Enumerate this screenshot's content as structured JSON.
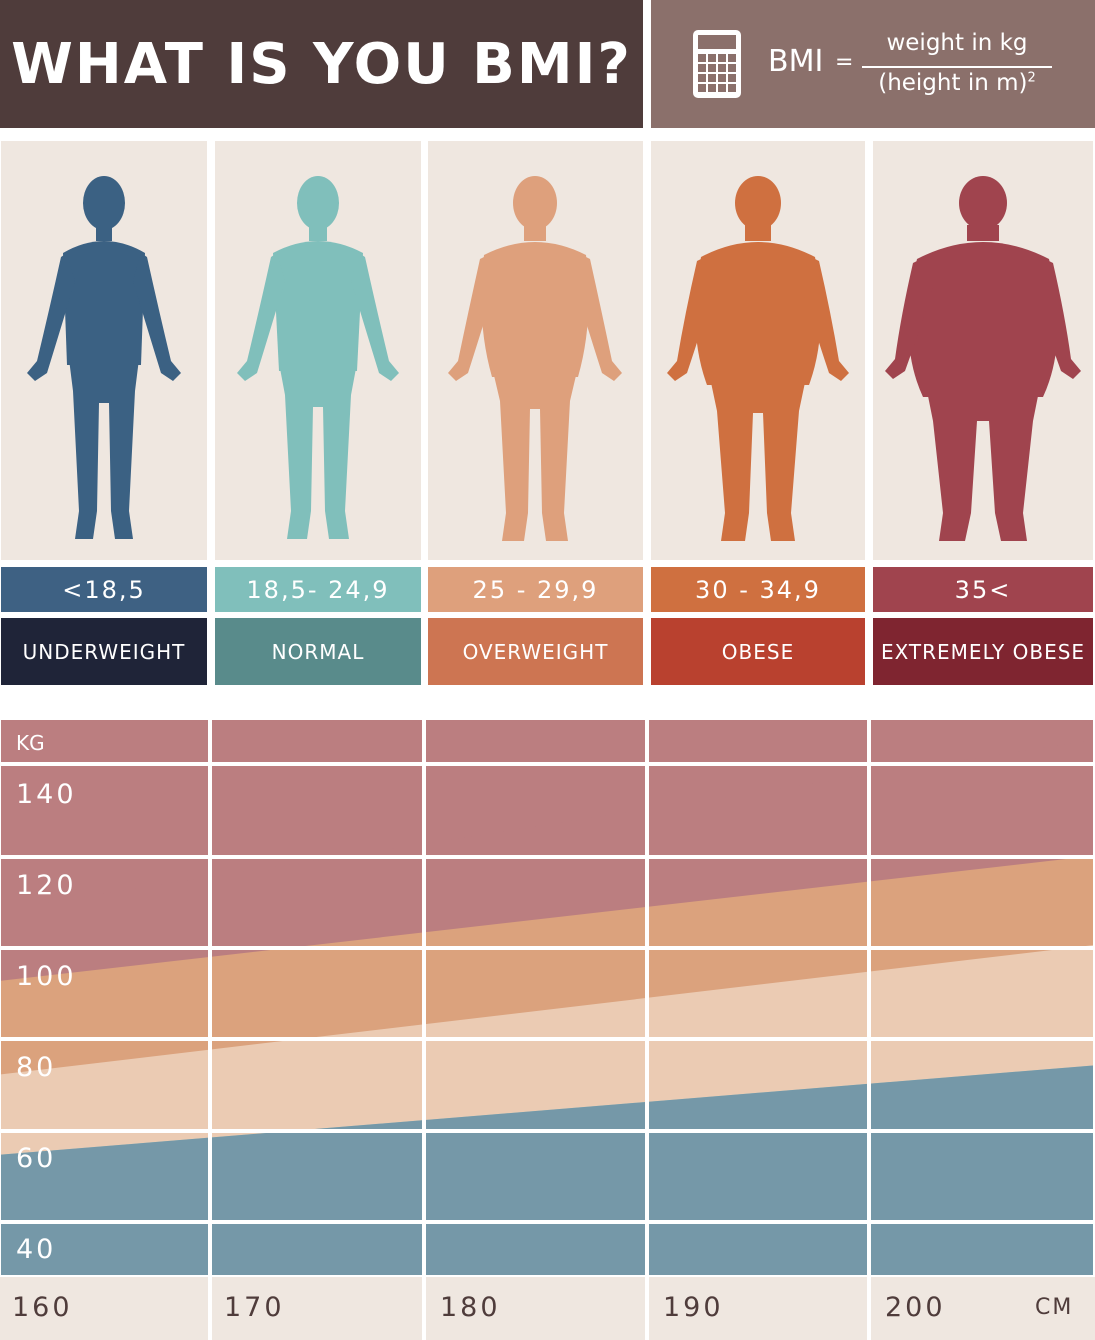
{
  "header": {
    "title": "WHAT IS YOU BMI?",
    "bmi_label": "BMI",
    "equals": "=",
    "numerator": "weight in kg",
    "denominator": "(height in m)",
    "denominator_exponent": "2",
    "icon": "calculator-icon"
  },
  "categories": [
    {
      "range": "<18,5",
      "label": "UNDERWEIGHT",
      "figure_color": "#3b6183",
      "range_color": "#3e6183",
      "label_color": "#1f2438"
    },
    {
      "range": "18,5- 24,9",
      "label": "NORMAL",
      "figure_color": "#80bfbb",
      "range_color": "#80bfbb",
      "label_color": "#598b8b"
    },
    {
      "range": "25 - 29,9",
      "label": "OVERWEIGHT",
      "figure_color": "#dea07c",
      "range_color": "#dea07c",
      "label_color": "#cd7552"
    },
    {
      "range": "30 - 34,9",
      "label": "OBESE",
      "figure_color": "#cf7040",
      "range_color": "#cf7040",
      "label_color": "#b9412f"
    },
    {
      "range": "35<",
      "label": "EXTREMELY OBESE",
      "figure_color": "#a0444e",
      "range_color": "#a0444e",
      "label_color": "#7f2530"
    }
  ],
  "chart_data": {
    "type": "area",
    "ylabel": "KG",
    "xlabel": "CM",
    "x_ticks": [
      "160",
      "170",
      "180",
      "190",
      "200"
    ],
    "y_ticks": [
      "140",
      "120",
      "100",
      "80",
      "60",
      "40"
    ],
    "xlim": [
      160,
      210
    ],
    "ylim": [
      30,
      150
    ],
    "boundaries": [
      {
        "name": "18,5",
        "x": [
          160,
          210
        ],
        "y": [
          57,
          77
        ]
      },
      {
        "name": "25",
        "x": [
          160,
          210
        ],
        "y": [
          75,
          104
        ]
      },
      {
        "name": "30",
        "x": [
          160,
          210
        ],
        "y": [
          96,
          124
        ]
      },
      {
        "name": "35",
        "x": [
          160,
          210
        ],
        "y": [
          112,
          150
        ]
      }
    ],
    "band_colors": [
      "#7598a8",
      "#a5cfca",
      "#ebcbb3",
      "#dba27d",
      "#bb7e80"
    ],
    "grid": true
  }
}
